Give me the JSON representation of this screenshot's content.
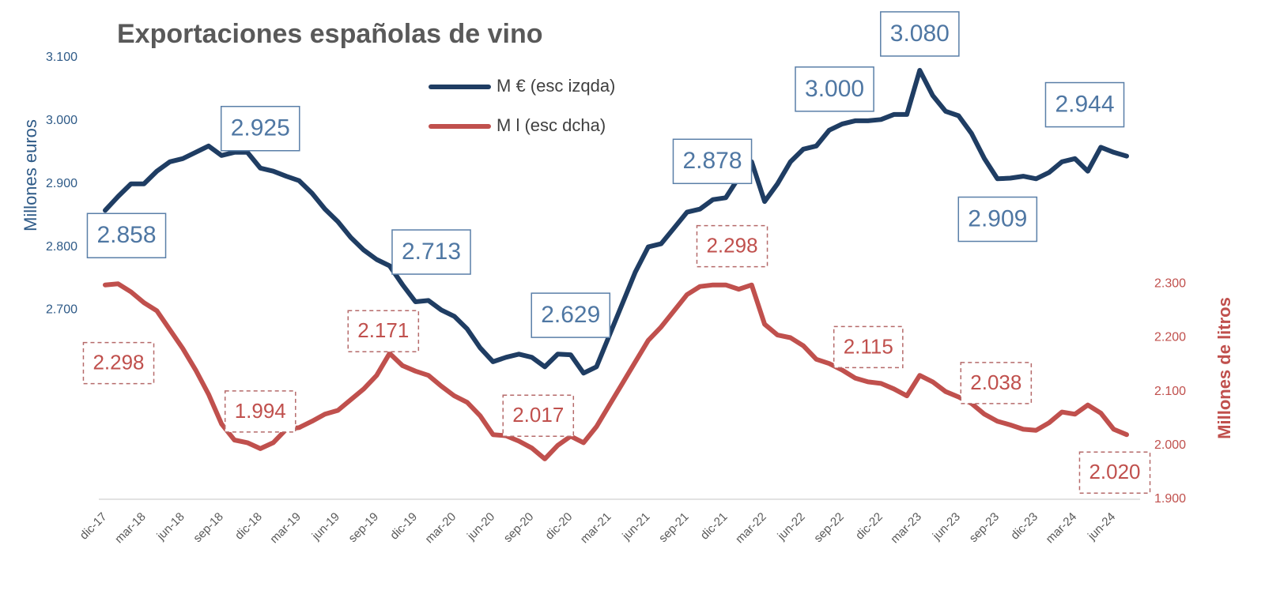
{
  "chart_data": {
    "type": "line",
    "title": "Exportaciones  españolas de vino",
    "y_label": "Millones euros",
    "y2_label": "Millones de litros",
    "categories": [
      "dic-17",
      null,
      null,
      "mar-18",
      null,
      null,
      "jun-18",
      null,
      null,
      "sep-18",
      null,
      null,
      "dic-18",
      null,
      null,
      "mar-19",
      null,
      null,
      "jun-19",
      null,
      null,
      "sep-19",
      null,
      null,
      "dic-19",
      null,
      null,
      "mar-20",
      null,
      null,
      "jun-20",
      null,
      null,
      "sep-20",
      null,
      null,
      "dic-20",
      null,
      null,
      "mar-21",
      null,
      null,
      "jun-21",
      null,
      null,
      "sep-21",
      null,
      null,
      "dic-21",
      null,
      null,
      "mar-22",
      null,
      null,
      "jun-22",
      null,
      null,
      "sep-22",
      null,
      null,
      "dic-22",
      null,
      null,
      "mar-23",
      null,
      null,
      "jun-23",
      null,
      null,
      "sep-23",
      null,
      null,
      "dic-23",
      null,
      null,
      "mar-24",
      null,
      null,
      "jun-24",
      null
    ],
    "ylim": [
      2400,
      3100
    ],
    "yticks": [
      {
        "value": 2700,
        "label": "2.700"
      },
      {
        "value": 2800,
        "label": "2.800"
      },
      {
        "value": 2900,
        "label": "2.900"
      },
      {
        "value": 3000,
        "label": "3.000"
      },
      {
        "value": 3100,
        "label": "3.100"
      }
    ],
    "y2lim": [
      1900,
      2720
    ],
    "y2ticks": [
      {
        "value": 1900,
        "label": "1.900"
      },
      {
        "value": 2000,
        "label": "2.000"
      },
      {
        "value": 2100,
        "label": "2.100"
      },
      {
        "value": 2200,
        "label": "2.200"
      },
      {
        "value": 2300,
        "label": "2.300"
      }
    ],
    "grid": false,
    "series": [
      {
        "name": "M € (esc izqda)",
        "color": "#1f3d63",
        "values": [
          2858,
          2880,
          2900,
          2900,
          2920,
          2935,
          2940,
          2950,
          2960,
          2945,
          2950,
          2950,
          2925,
          2920,
          2912,
          2905,
          2885,
          2860,
          2840,
          2815,
          2795,
          2780,
          2770,
          2740,
          2713,
          2715,
          2700,
          2690,
          2670,
          2640,
          2618,
          2625,
          2630,
          2625,
          2610,
          2630,
          2629,
          2600,
          2610,
          2660,
          2710,
          2760,
          2800,
          2805,
          2830,
          2855,
          2860,
          2875,
          2878,
          2910,
          2935,
          2872,
          2900,
          2935,
          2955,
          2960,
          2985,
          2995,
          3000,
          3000,
          3002,
          3010,
          3010,
          3080,
          3040,
          3015,
          3008,
          2980,
          2940,
          2908,
          2909,
          2912,
          2908,
          2918,
          2935,
          2940,
          2920,
          2958,
          2950,
          2944
        ],
        "value_labels": [
          "2.858",
          null,
          null,
          null,
          null,
          null,
          null,
          null,
          null,
          null,
          null,
          null,
          "2.925",
          null,
          null,
          null,
          null,
          null,
          null,
          null,
          null,
          null,
          null,
          null,
          "2.713",
          null,
          null,
          null,
          null,
          null,
          null,
          null,
          null,
          null,
          null,
          null,
          "2.629",
          null,
          null,
          null,
          null,
          null,
          null,
          null,
          null,
          null,
          null,
          null,
          "2.878",
          null,
          null,
          null,
          null,
          null,
          null,
          null,
          null,
          null,
          "3.000",
          null,
          null,
          null,
          null,
          "3.080",
          null,
          null,
          null,
          null,
          null,
          null,
          "2.909",
          null,
          null,
          null,
          null,
          null,
          null,
          null,
          null,
          "2.944"
        ]
      },
      {
        "name": "M l (esc dcha)",
        "color": "#c0504d",
        "axis": "y2",
        "values": [
          2298,
          2300,
          2285,
          2265,
          2250,
          2215,
          2180,
          2140,
          2095,
          2040,
          2010,
          2005,
          1994,
          2005,
          2030,
          2033,
          2045,
          2058,
          2065,
          2085,
          2105,
          2130,
          2171,
          2148,
          2138,
          2130,
          2110,
          2092,
          2080,
          2055,
          2020,
          2018,
          2008,
          1995,
          1975,
          2000,
          2017,
          2005,
          2035,
          2075,
          2115,
          2155,
          2195,
          2220,
          2250,
          2280,
          2295,
          2298,
          2298,
          2290,
          2298,
          2225,
          2205,
          2200,
          2185,
          2160,
          2152,
          2140,
          2125,
          2118,
          2115,
          2105,
          2092,
          2130,
          2118,
          2100,
          2090,
          2078,
          2058,
          2045,
          2038,
          2030,
          2028,
          2042,
          2062,
          2058,
          2075,
          2060,
          2030,
          2020
        ],
        "value_labels": [
          "2.298",
          null,
          null,
          null,
          null,
          null,
          null,
          null,
          null,
          null,
          null,
          null,
          "1.994",
          null,
          null,
          null,
          null,
          null,
          null,
          null,
          null,
          null,
          "2.171",
          null,
          null,
          null,
          null,
          null,
          null,
          null,
          null,
          null,
          null,
          null,
          null,
          null,
          "2.017",
          null,
          null,
          null,
          null,
          null,
          null,
          null,
          null,
          null,
          null,
          null,
          "2.298",
          null,
          null,
          null,
          null,
          null,
          null,
          null,
          null,
          null,
          null,
          null,
          "2.115",
          null,
          null,
          null,
          null,
          null,
          null,
          null,
          null,
          null,
          "2.038",
          null,
          null,
          null,
          null,
          null,
          null,
          null,
          null,
          "2.020"
        ]
      }
    ]
  }
}
